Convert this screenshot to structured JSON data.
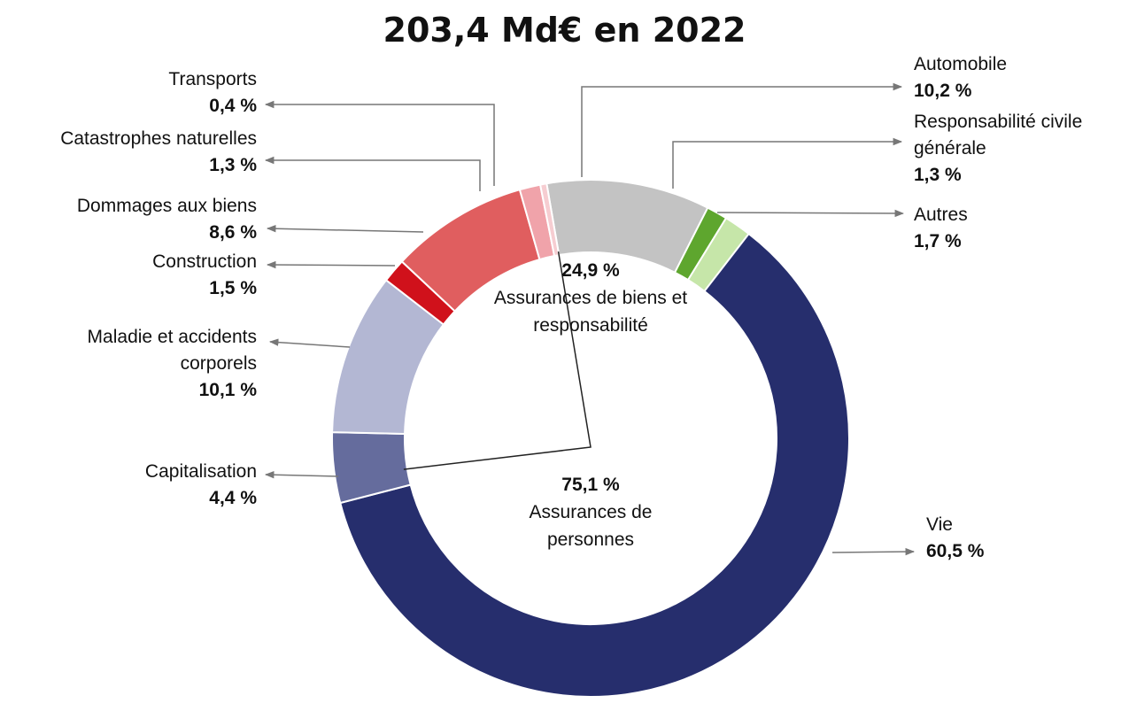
{
  "chart_data": {
    "type": "donut",
    "title": "203,4 Md€ en 2022",
    "categories": [
      "Automobile",
      "Responsabilité civile générale",
      "Autres",
      "Vie",
      "Capitalisation",
      "Maladie et accidents corporels",
      "Construction",
      "Dommages aux biens",
      "Catastrophes naturelles",
      "Transports"
    ],
    "values": [
      10.2,
      1.3,
      1.7,
      60.5,
      4.4,
      10.1,
      1.5,
      8.6,
      1.3,
      0.4
    ],
    "value_labels": [
      "10,2 %",
      "1,3 %",
      "1,7 %",
      "60,5 %",
      "4,4 %",
      "10,1 %",
      "1,5 %",
      "8,6 %",
      "1,3 %",
      "0,4 %"
    ],
    "colors": [
      "#c3c3c3",
      "#5ea62e",
      "#c6e6a9",
      "#262e6d",
      "#656c9d",
      "#b3b7d3",
      "#d0111b",
      "#e05e5f",
      "#f0a3aa",
      "#f6cdd1"
    ],
    "groups": [
      {
        "value": 24.9,
        "value_label": "24,9 %",
        "label": "Assurances de biens et responsabilité"
      },
      {
        "value": 75.1,
        "value_label": "75,1 %",
        "label": "Assurances de personnes"
      }
    ]
  }
}
